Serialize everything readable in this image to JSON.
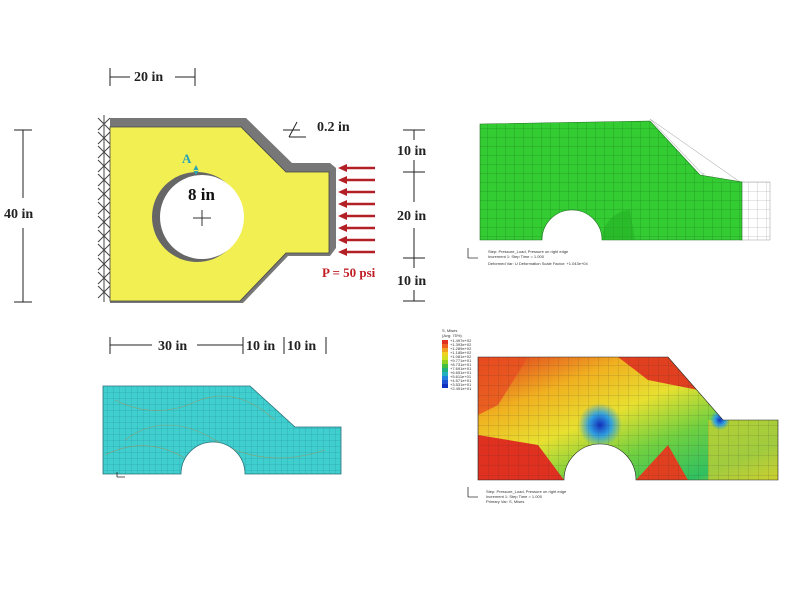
{
  "diagram": {
    "dim_width_top": "20 in",
    "dim_height_left": "40 in",
    "dim_thickness": "0.2 in",
    "dim_bottom_left": "30 in",
    "dim_bottom_mid": "10 in",
    "dim_bottom_right": "10 in",
    "dim_right_top": "10 in",
    "dim_right_mid": "20 in",
    "dim_right_bottom": "10 in",
    "hole_diameter": "8 in",
    "point_label": "A",
    "load_label": "P = 50 psi"
  },
  "colors": {
    "plate": "#f1ef52",
    "border": "#777777",
    "arrow": "#b21f25",
    "mesh_base": "#3fcfce",
    "deformed_green": "#33cc33",
    "legend_red": "#e03020",
    "legend_blue": "#1030c0"
  },
  "fea_top": {
    "legend": [
      "Step: Pressure_Load, Pressure on right edge",
      "Increment 1: Step Time = 1.000",
      "Deformed Var: U  Deformation Scale Factor: +1.043e+04"
    ]
  },
  "fea_bottom": {
    "legend_title": "S, Mises",
    "legend_subtitle": "(Avg: 75%)",
    "legend_values": [
      "+1.497e+02",
      "+1.393e+02",
      "+1.289e+02",
      "+1.185e+02",
      "+1.081e+02",
      "+9.771e+01",
      "+8.731e+01",
      "+7.691e+01",
      "+6.651e+01",
      "+5.611e+01",
      "+4.571e+01",
      "+3.531e+01",
      "+2.491e+01"
    ],
    "legend": [
      "Step: Pressure_Load, Pressure on right edge",
      "Increment 1: Step Time = 1.000",
      "Primary Var: S, Mises"
    ]
  }
}
